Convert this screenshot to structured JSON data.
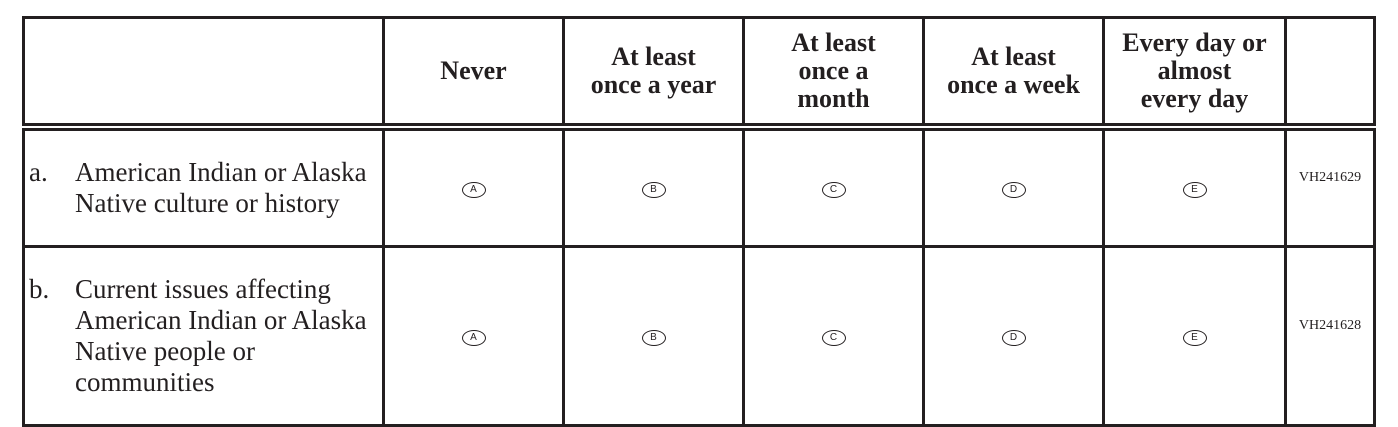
{
  "columns": [
    "",
    "Never",
    "At least once a year",
    "At least once a month",
    "At least once a week",
    "Every day or almost every day",
    ""
  ],
  "column_lines": [
    [],
    [
      "Never"
    ],
    [
      "At least",
      "once a year"
    ],
    [
      "At least",
      "once a",
      "month"
    ],
    [
      "At least",
      "once a week"
    ],
    [
      "Every day or",
      "almost",
      "every day"
    ]
  ],
  "options": [
    "A",
    "B",
    "C",
    "D",
    "E"
  ],
  "rows": [
    {
      "label": "a.",
      "text": "American Indian or Alaska Native culture or history",
      "id": "VH241629"
    },
    {
      "label": "b.",
      "text": "Current issues affecting American Indian or Alaska Native people or communities",
      "id": "VH241628"
    }
  ]
}
